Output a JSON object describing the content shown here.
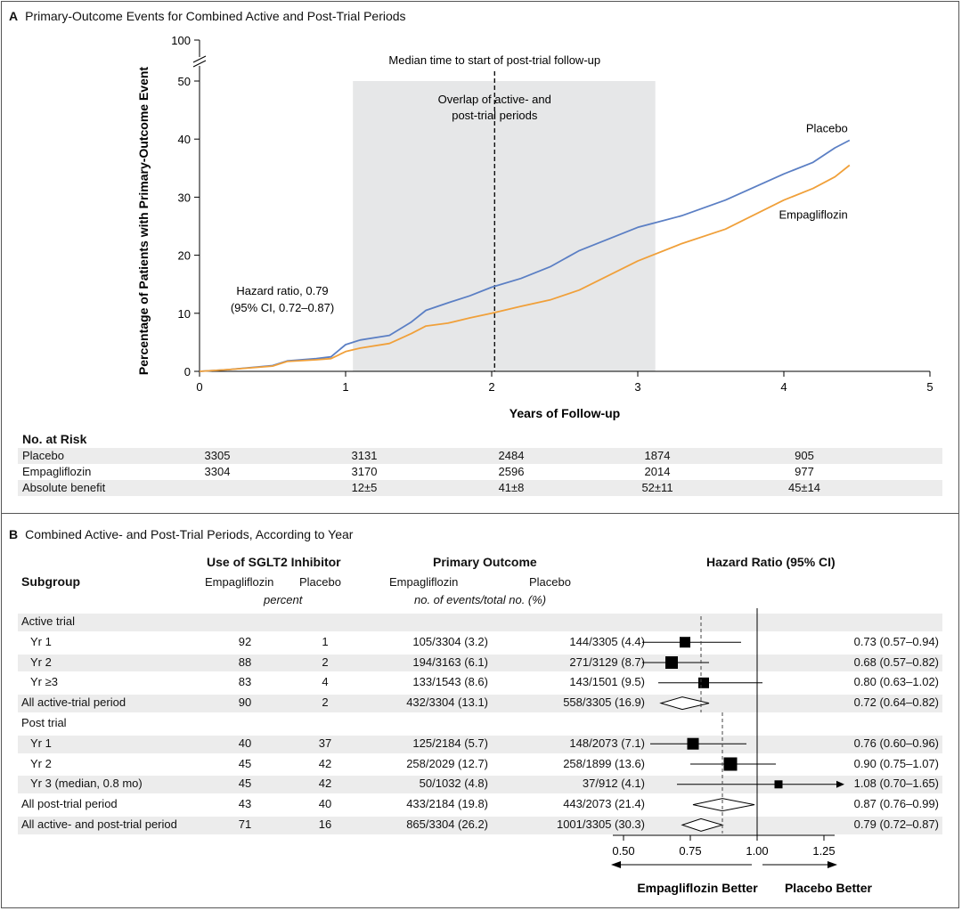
{
  "panelA": {
    "letter": "A",
    "title": "Primary-Outcome Events for Combined Active and Post-Trial Periods",
    "chart_data": {
      "type": "line",
      "xlabel": "Years of Follow-up",
      "ylabel": "Percentage of Patients with Primary-Outcome Event",
      "xlim": [
        0,
        5
      ],
      "ylim": [
        0,
        50
      ],
      "x_ticks": [
        "0",
        "1",
        "2",
        "3",
        "4",
        "5"
      ],
      "y_ticks": [
        "0",
        "10",
        "20",
        "30",
        "40",
        "50"
      ],
      "y_break_label": "100",
      "shaded_region": [
        1.05,
        3.12
      ],
      "median_line_x": 2.02,
      "annotations": {
        "median": "Median time to start of post-trial follow-up",
        "overlap_1": "Overlap of active- and",
        "overlap_2": "post-trial periods",
        "hr_1": "Hazard ratio, 0.79",
        "hr_2": "(95% CI, 0.72–0.87)"
      },
      "series": [
        {
          "name": "Placebo",
          "color": "#5b7fc4",
          "x": [
            0,
            0.2,
            0.5,
            0.6,
            0.8,
            0.9,
            1.0,
            1.1,
            1.3,
            1.45,
            1.55,
            1.7,
            1.85,
            2.0,
            2.2,
            2.4,
            2.6,
            3.0,
            3.3,
            3.6,
            4.0,
            4.2,
            4.35,
            4.45
          ],
          "y": [
            0,
            0.3,
            1.0,
            1.8,
            2.2,
            2.5,
            4.6,
            5.4,
            6.2,
            8.5,
            10.5,
            11.8,
            13.0,
            14.5,
            16.0,
            18.0,
            20.8,
            24.8,
            26.8,
            29.5,
            34.0,
            36.0,
            38.5,
            39.8
          ]
        },
        {
          "name": "Empagliflozin",
          "color": "#f0a03a",
          "x": [
            0,
            0.2,
            0.5,
            0.6,
            0.8,
            0.9,
            1.0,
            1.1,
            1.3,
            1.45,
            1.55,
            1.7,
            1.85,
            2.0,
            2.2,
            2.4,
            2.6,
            3.0,
            3.3,
            3.6,
            4.0,
            4.2,
            4.35,
            4.45
          ],
          "y": [
            0,
            0.3,
            0.9,
            1.7,
            2.0,
            2.2,
            3.4,
            4.0,
            4.8,
            6.5,
            7.8,
            8.3,
            9.2,
            10.0,
            11.2,
            12.3,
            14.0,
            19.0,
            22.0,
            24.5,
            29.5,
            31.5,
            33.5,
            35.5
          ]
        }
      ]
    },
    "risk": {
      "title": "No. at Risk",
      "rows": [
        {
          "label": "Placebo",
          "values": [
            "3305",
            "3131",
            "2484",
            "1874",
            "905"
          ]
        },
        {
          "label": "Empagliflozin",
          "values": [
            "3304",
            "3170",
            "2596",
            "2014",
            "977"
          ]
        },
        {
          "label": "Absolute benefit",
          "values": [
            "",
            "12±5",
            "41±8",
            "52±11",
            "45±14"
          ]
        }
      ]
    }
  },
  "panelB": {
    "letter": "B",
    "title": "Combined Active- and Post-Trial Periods, According to Year",
    "headers": {
      "subgroup": "Subgroup",
      "sglt2": "Use of SGLT2 Inhibitor",
      "empa": "Empagliflozin",
      "placebo": "Placebo",
      "percent": "percent",
      "primary": "Primary Outcome",
      "events": "no. of events/total no. (%)",
      "hr": "Hazard Ratio (95% CI)"
    },
    "chart_data": {
      "type": "forest",
      "axis_ticks": [
        0.5,
        0.75,
        1.0,
        1.25
      ],
      "axis_tick_labels": [
        "0.50",
        "0.75",
        "1.00",
        "1.25"
      ],
      "axis_range": [
        0.5,
        1.3
      ],
      "reference_line": 1.0,
      "overall_dashed_line": 0.79,
      "favor_left": "Empagliflozin Better",
      "favor_right": "Placebo Better",
      "rows": [
        {
          "label": "Active trial",
          "indent": false,
          "section": true,
          "shade": true
        },
        {
          "label": "Yr 1",
          "indent": true,
          "empa_pct": "92",
          "pbo_pct": "1",
          "empa_events": "105/3304 (3.2)",
          "pbo_events": "144/3305 (4.4)",
          "hr": 0.73,
          "lo": 0.57,
          "hi": 0.94,
          "hr_text": "0.73 (0.57–0.94)",
          "kind": "square",
          "size": 12,
          "shade": false
        },
        {
          "label": "Yr 2",
          "indent": true,
          "empa_pct": "88",
          "pbo_pct": "2",
          "empa_events": "194/3163 (6.1)",
          "pbo_events": "271/3129 (8.7)",
          "hr": 0.68,
          "lo": 0.57,
          "hi": 0.82,
          "hr_text": "0.68 (0.57–0.82)",
          "kind": "square",
          "size": 14,
          "shade": true
        },
        {
          "label": "Yr ≥3",
          "indent": true,
          "empa_pct": "83",
          "pbo_pct": "4",
          "empa_events": "133/1543 (8.6)",
          "pbo_events": "143/1501 (9.5)",
          "hr": 0.8,
          "lo": 0.63,
          "hi": 1.02,
          "hr_text": "0.80 (0.63–1.02)",
          "kind": "square",
          "size": 12,
          "shade": false
        },
        {
          "label": "All active-trial period",
          "indent": false,
          "empa_pct": "90",
          "pbo_pct": "2",
          "empa_events": "432/3304 (13.1)",
          "pbo_events": "558/3305 (16.9)",
          "hr": 0.72,
          "lo": 0.64,
          "hi": 0.82,
          "hr_text": "0.72 (0.64–0.82)",
          "kind": "diamond",
          "shade": true
        },
        {
          "label": "Post trial",
          "indent": false,
          "section": true,
          "shade": false
        },
        {
          "label": "Yr 1",
          "indent": true,
          "empa_pct": "40",
          "pbo_pct": "37",
          "empa_events": "125/2184 (5.7)",
          "pbo_events": "148/2073 (7.1)",
          "hr": 0.76,
          "lo": 0.6,
          "hi": 0.96,
          "hr_text": "0.76 (0.60–0.96)",
          "kind": "square",
          "size": 13,
          "shade": true
        },
        {
          "label": "Yr 2",
          "indent": true,
          "empa_pct": "45",
          "pbo_pct": "42",
          "empa_events": "258/2029 (12.7)",
          "pbo_events": "258/1899 (13.6)",
          "hr": 0.9,
          "lo": 0.75,
          "hi": 1.07,
          "hr_text": "0.90 (0.75–1.07)",
          "kind": "square",
          "size": 15,
          "shade": false
        },
        {
          "label": "Yr 3 (median, 0.8 mo)",
          "indent": true,
          "empa_pct": "45",
          "pbo_pct": "42",
          "empa_events": "50/1032 (4.8)",
          "pbo_events": "37/912 (4.1)",
          "hr": 1.08,
          "lo": 0.7,
          "hi": 1.65,
          "hr_text": "1.08 (0.70–1.65)",
          "kind": "square",
          "size": 9,
          "arrow": true,
          "shade": true
        },
        {
          "label": "All post-trial period",
          "indent": false,
          "empa_pct": "43",
          "pbo_pct": "40",
          "empa_events": "433/2184 (19.8)",
          "pbo_events": "443/2073 (21.4)",
          "hr": 0.87,
          "lo": 0.76,
          "hi": 0.99,
          "hr_text": "0.87 (0.76–0.99)",
          "kind": "diamond",
          "shade": false
        },
        {
          "label": "All active- and post-trial period",
          "indent": false,
          "empa_pct": "71",
          "pbo_pct": "16",
          "empa_events": "865/3304 (26.2)",
          "pbo_events": "1001/3305 (30.3)",
          "hr": 0.79,
          "lo": 0.72,
          "hi": 0.87,
          "hr_text": "0.79 (0.72–0.87)",
          "kind": "diamond",
          "shade": true
        }
      ]
    }
  }
}
